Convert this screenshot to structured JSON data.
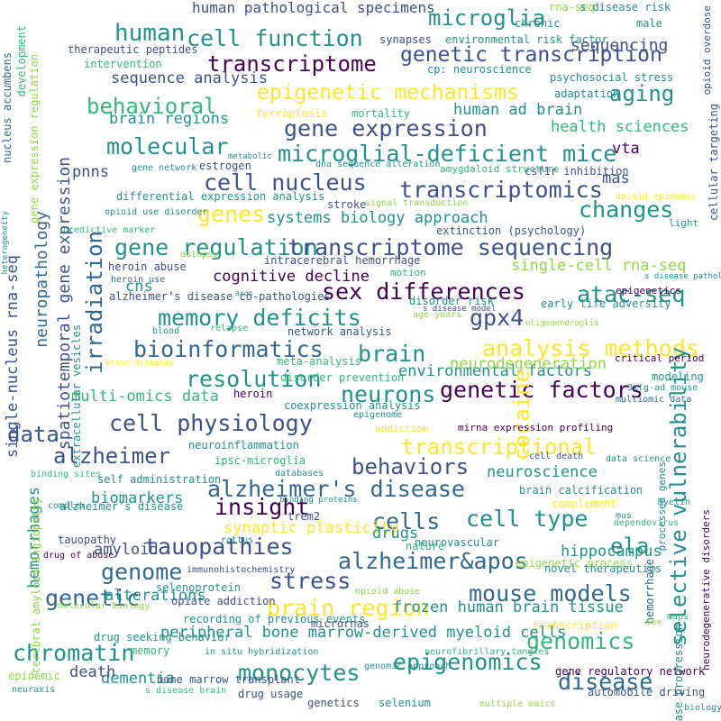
{
  "palette": {
    "dark_purple": "#440154",
    "indigo": "#3b528b",
    "blue": "#31688e",
    "teal": "#21918c",
    "green": "#35b779",
    "light_green": "#90d743",
    "yellow": "#fde725"
  },
  "words": [
    "cell function",
    "transcriptome",
    "genetic transcription",
    "microglia",
    "human",
    "human pathological specimens",
    "sequencing",
    "aging",
    "epigenetic mechanisms",
    "behavioral",
    "sequence analysis",
    "gene expression",
    "microglial-deficient mice",
    "molecular",
    "cell nucleus",
    "transcriptomics",
    "genes",
    "changes",
    "gene regulation",
    "transcriptome sequencing",
    "sex differences",
    "memory deficits",
    "irradiation",
    "gpx4",
    "atac-seq",
    "bioinformatics",
    "brain",
    "analysis methods",
    "resolution",
    "neurons",
    "cell physiology",
    "genetic factors",
    "data",
    "alzheimer",
    "transcriptional",
    "behaviors",
    "alzheimer's disease",
    "insight",
    "cells",
    "cell type",
    "cocaine",
    "tauopathies",
    "genome",
    "alzheimer&apos",
    "mouse models",
    "ela",
    "stress",
    "genetic",
    "brain region",
    "genomics",
    "chromatin",
    "epigenomics",
    "disease",
    "monocytes",
    "selective vulnerability",
    "single-nucleus rna-seq",
    "neuropathology",
    "spatiotemporal gene expression",
    "brain regions",
    "human ad brain",
    "health sciences",
    "vta",
    "pnns",
    "mas",
    "systems biology approach",
    "single-cell rna-seq",
    "cognitive decline",
    "cns",
    "environmental factors",
    "multi-omics data",
    "neurodegeneration",
    "synaptic plasticity",
    "alterations",
    "amyloid",
    "biomarkers",
    "hemorrhages",
    "neuroscience",
    "drugs",
    "hippocampus",
    "frozen human brain tissue",
    "peripheral bone marrow-derived myeloid cells",
    "dementia",
    "death",
    "epigenetic process",
    "chronic",
    "synapses",
    "environmental risk factor",
    "therapeutic peptides",
    "cp: neuroscience",
    "intervention",
    "psychosocial stress",
    "adaptation",
    "ferroptosis",
    "mortality",
    "rna-seq",
    "s disease risk",
    "male",
    "development",
    "nucleus accumbens",
    "gene expression regulation",
    "heterogeneity",
    "opioid overdose",
    "cellular targeting",
    "metabolic",
    "gene network",
    "estrogen",
    "dna sequence alteration",
    "amygdaloid structure",
    "csf1r inhibition",
    "differential expression analysis",
    "opioid epidemic",
    "opioid use disorder",
    "stroke",
    "signal transduction",
    "extinction (psychology)",
    "predictive marker",
    "light",
    "autopsy",
    "heroin abuse",
    "intracerebral hemorrhage",
    "heroin use",
    "motion",
    "disorder risk",
    "s disease pathology",
    "epigenetics",
    "alzheimer’s disease co-pathologies",
    "axon",
    "early life adversity",
    "s disease model",
    "age-years",
    "oligodendroglia",
    "blood",
    "relapse",
    "network analysis",
    "extracellular vesicles",
    "brain diseases",
    "critical period",
    "meta-analysis",
    "disorder prevention",
    "modeling",
    "3xtg-ad mouse",
    "heroin",
    "multiomic data",
    "coexpression analysis",
    "epigenome",
    "addiction",
    "mirna expression profiling",
    "neuroinflammation",
    "cell death",
    "data science",
    "ipsc-microglia",
    "databases",
    "binding sites",
    "self administration",
    "brain calcification",
    "processed genes",
    "cerebral amyloid angiopathy",
    "complement",
    "alzheimer’s disease",
    "trem2",
    "myelin",
    "binding proteins",
    "complex",
    "tauopathy",
    "neurovascular",
    "mus",
    "dependovirus",
    "nature",
    "rattus",
    "drug of abuse",
    "immunohistochemistry",
    "hemorrhage",
    "novel therapeutics",
    "neurodegenerative disorders",
    "selenoprotein",
    "opiate addiction",
    "opioid abuse",
    "disease progression",
    "molecular biology",
    "recording of previous events",
    "micrornas",
    "transcription",
    "sex",
    "maps",
    "drug seeking behavior",
    "memory",
    "in situ hybridization",
    "neurofibrillary tangles",
    "bone marrow transplant",
    "gene regulatory network",
    "genomic approach",
    "epidemic",
    "automobile driving",
    "s disease brain",
    "neuraxis",
    "drug usage",
    "genetics",
    "selenium",
    "multiple omics",
    "biology"
  ]
}
